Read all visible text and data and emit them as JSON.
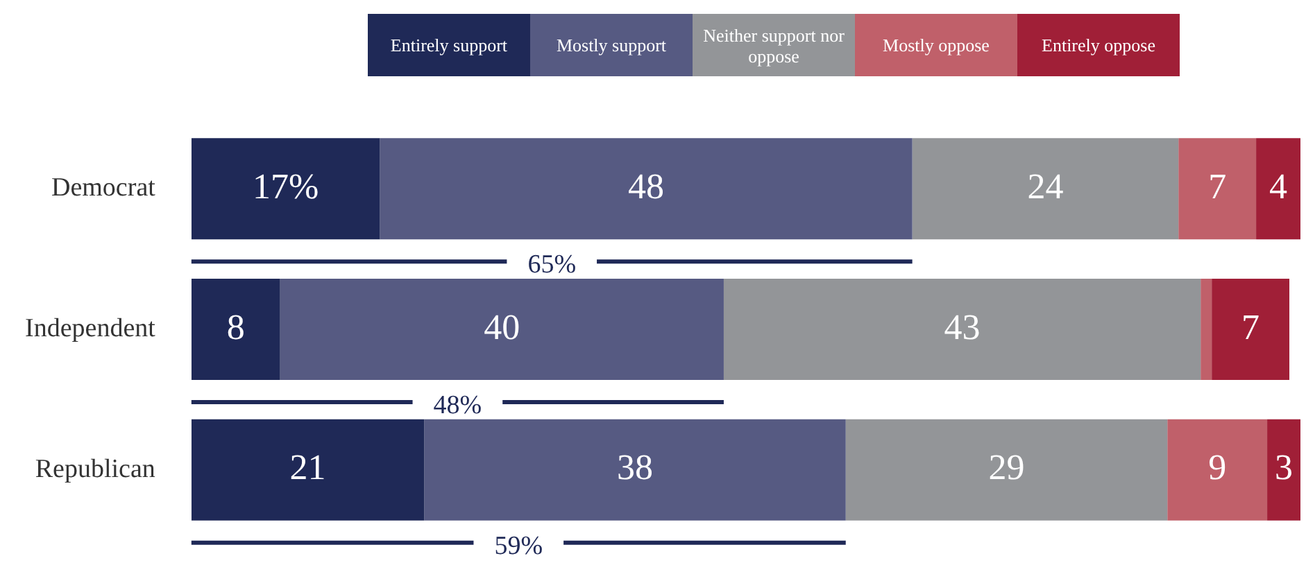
{
  "chart_data": {
    "type": "bar",
    "orientation": "horizontal",
    "stacked": true,
    "categories": [
      "Democrat",
      "Independent",
      "Republican"
    ],
    "series": [
      {
        "name": "Entirely support",
        "color": "#1f2957",
        "values": [
          17,
          8,
          21
        ],
        "value_labels": [
          "17%",
          "8",
          "21"
        ]
      },
      {
        "name": "Mostly support",
        "color": "#565a82",
        "values": [
          48,
          40,
          38
        ],
        "value_labels": [
          "48",
          "40",
          "38"
        ]
      },
      {
        "name": "Neither support nor oppose",
        "color": "#939598",
        "values": [
          24,
          43,
          29
        ],
        "value_labels": [
          "24",
          "43",
          "29"
        ]
      },
      {
        "name": "Mostly oppose",
        "color": "#c0606a",
        "values": [
          7,
          1,
          9
        ],
        "value_labels": [
          "7",
          null,
          "9"
        ]
      },
      {
        "name": "Entirely oppose",
        "color": "#a01f37",
        "values": [
          4,
          7,
          3
        ],
        "value_labels": [
          "4",
          "7",
          "3"
        ]
      }
    ],
    "xlim": [
      0,
      100
    ],
    "tick_labels": "y",
    "grid": false,
    "legend": "top",
    "annotations": [
      "65%",
      "48%",
      "59%"
    ]
  }
}
